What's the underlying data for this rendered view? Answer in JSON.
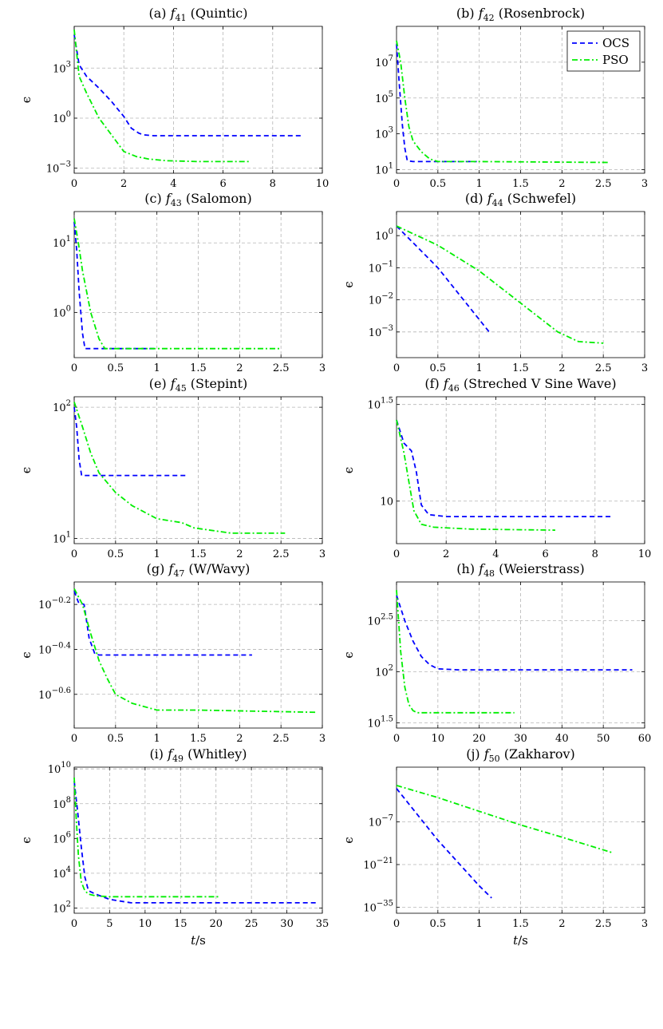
{
  "legend": {
    "entries": [
      "OCS",
      "PSO"
    ]
  },
  "series_styles": [
    {
      "name": "OCS",
      "color": "#0000ff",
      "dash": "6 4"
    },
    {
      "name": "PSO",
      "color": "#00ee00",
      "dash": "7 3 2 3"
    }
  ],
  "chart_data": [
    {
      "type": "line",
      "title": "(a) f41 (Quintic)",
      "title_prefix": "(a) ",
      "func_sub": "41",
      "func_name": " (Quintic)",
      "ylabel": "ϵ",
      "xlabel": "",
      "yscale": "log",
      "legend": false,
      "xlim": [
        0,
        10
      ],
      "xticks": [
        "0",
        "2",
        "4",
        "6",
        "8",
        "10"
      ],
      "ylim_log10": [
        -3.3,
        5.5
      ],
      "yticks": [
        {
          "base": "10",
          "exp": "3",
          "v": 3
        },
        {
          "base": "10",
          "exp": "0",
          "v": 0
        },
        {
          "base": "10",
          "exp": "−3",
          "v": -3
        }
      ],
      "series": [
        {
          "name": "OCS",
          "x": [
            0,
            0.2,
            0.5,
            1,
            1.5,
            2,
            2.3,
            2.6,
            2.8,
            3.2,
            4,
            9.2
          ],
          "y_log10": [
            5,
            3.2,
            2.5,
            1.8,
            1.0,
            0.1,
            -0.6,
            -0.9,
            -1.0,
            -1.05,
            -1.05,
            -1.05
          ]
        },
        {
          "name": "PSO",
          "x": [
            0,
            0.2,
            0.5,
            1,
            1.5,
            2,
            2.5,
            3,
            3.7,
            5,
            7.1
          ],
          "y_log10": [
            5.3,
            2.5,
            1.5,
            0,
            -1.0,
            -2.0,
            -2.3,
            -2.45,
            -2.55,
            -2.6,
            -2.6
          ]
        }
      ]
    },
    {
      "type": "line",
      "title": "(b) f42 (Rosenbrock)",
      "title_prefix": "(b) ",
      "func_sub": "42",
      "func_name": " (Rosenbrock)",
      "ylabel": "",
      "xlabel": "",
      "yscale": "log",
      "legend": true,
      "xlim": [
        0,
        3
      ],
      "xticks": [
        "0",
        "0.5",
        "1",
        "1.5",
        "2",
        "2.5",
        "3"
      ],
      "ylim_log10": [
        0.8,
        9.0
      ],
      "yticks": [
        {
          "base": "10",
          "exp": "7",
          "v": 7
        },
        {
          "base": "10",
          "exp": "5",
          "v": 5
        },
        {
          "base": "10",
          "exp": "3",
          "v": 3
        },
        {
          "base": "10",
          "exp": "1",
          "v": 1
        }
      ],
      "series": [
        {
          "name": "OCS",
          "x": [
            0,
            0.03,
            0.07,
            0.1,
            0.13,
            0.2,
            0.97
          ],
          "y_log10": [
            8.0,
            6.0,
            3.5,
            2.2,
            1.5,
            1.45,
            1.45
          ]
        },
        {
          "name": "PSO",
          "x": [
            0,
            0.05,
            0.1,
            0.15,
            0.2,
            0.3,
            0.4,
            0.5,
            1,
            2.56
          ],
          "y_log10": [
            8.2,
            7.0,
            5.0,
            3.4,
            2.6,
            2.0,
            1.6,
            1.45,
            1.45,
            1.4
          ]
        }
      ]
    },
    {
      "type": "line",
      "title": "(c) f43 (Salomon)",
      "title_prefix": "(c) ",
      "func_sub": "43",
      "func_name": " (Salomon)",
      "ylabel": "",
      "xlabel": "",
      "yscale": "log",
      "legend": false,
      "xlim": [
        0,
        3
      ],
      "xticks": [
        "0",
        "0.5",
        "1",
        "1.5",
        "2",
        "2.5",
        "3"
      ],
      "ylim_log10": [
        -0.65,
        1.45
      ],
      "yticks": [
        {
          "base": "10",
          "exp": "1",
          "v": 1
        },
        {
          "base": "10",
          "exp": "0",
          "v": 0
        }
      ],
      "series": [
        {
          "name": "OCS",
          "x": [
            0,
            0.03,
            0.06,
            0.1,
            0.13,
            1.0
          ],
          "y_log10": [
            1.3,
            0.9,
            0.3,
            -0.3,
            -0.52,
            -0.52
          ]
        },
        {
          "name": "PSO",
          "x": [
            0,
            0.05,
            0.1,
            0.2,
            0.3,
            0.37,
            0.5,
            2.5
          ],
          "y_log10": [
            1.35,
            1.0,
            0.6,
            0,
            -0.38,
            -0.52,
            -0.52,
            -0.52
          ]
        }
      ]
    },
    {
      "type": "line",
      "title": "(d) f44 (Schwefel)",
      "title_prefix": "(d) ",
      "func_sub": "44",
      "func_name": " (Schwefel)",
      "ylabel": "ϵ",
      "xlabel": "",
      "yscale": "log",
      "legend": false,
      "xlim": [
        0,
        3
      ],
      "xticks": [
        "0",
        "0.5",
        "1",
        "1.5",
        "2",
        "2.5",
        "3"
      ],
      "ylim_log10": [
        -3.8,
        0.75
      ],
      "yticks": [
        {
          "base": "10",
          "exp": "0",
          "v": 0
        },
        {
          "base": "10",
          "exp": "−1",
          "v": -1
        },
        {
          "base": "10",
          "exp": "−2",
          "v": -2
        },
        {
          "base": "10",
          "exp": "−3",
          "v": -3
        }
      ],
      "series": [
        {
          "name": "OCS",
          "x": [
            0,
            0.5,
            1.12
          ],
          "y_log10": [
            0.3,
            -1.0,
            -3.0
          ]
        },
        {
          "name": "PSO",
          "x": [
            0,
            0.5,
            1,
            1.5,
            1.95,
            2.2,
            2.5
          ],
          "y_log10": [
            0.3,
            -0.3,
            -1.1,
            -2.1,
            -3.0,
            -3.3,
            -3.35
          ]
        }
      ]
    },
    {
      "type": "line",
      "title": "(e) f45 (Stepint)",
      "title_prefix": "(e) ",
      "func_sub": "45",
      "func_name": " (Stepint)",
      "ylabel": "ϵ",
      "xlabel": "",
      "yscale": "log",
      "legend": false,
      "xlim": [
        0,
        3
      ],
      "xticks": [
        "0",
        "0.5",
        "1",
        "1.5",
        "2",
        "2.5",
        "3"
      ],
      "ylim_log10": [
        0.96,
        2.08
      ],
      "yticks": [
        {
          "base": "10",
          "exp": "2",
          "v": 2
        },
        {
          "base": "10",
          "exp": "1",
          "v": 1
        }
      ],
      "series": [
        {
          "name": "OCS",
          "x": [
            0,
            0.03,
            0.06,
            0.09,
            1.35
          ],
          "y_log10": [
            2.0,
            1.85,
            1.6,
            1.48,
            1.48
          ]
        },
        {
          "name": "PSO",
          "x": [
            0,
            0.1,
            0.2,
            0.3,
            0.5,
            0.7,
            1.0,
            1.3,
            1.45,
            1.9,
            2.55
          ],
          "y_log10": [
            2.04,
            1.85,
            1.65,
            1.5,
            1.35,
            1.25,
            1.15,
            1.12,
            1.08,
            1.04,
            1.04
          ]
        }
      ]
    },
    {
      "type": "line",
      "title": "(f) f46 (Streched V Sine Wave)",
      "title_prefix": "(f) ",
      "func_sub": "46",
      "func_name": " (Streched V Sine Wave)",
      "ylabel": "ϵ",
      "xlabel": "",
      "yscale": "log",
      "legend": false,
      "xlim": [
        0,
        10
      ],
      "xticks": [
        "0",
        "2",
        "4",
        "6",
        "8",
        "10"
      ],
      "ylim_log10": [
        0.78,
        1.54
      ],
      "yticks": [
        {
          "base": "10",
          "exp": "1.5",
          "v": 1.5
        },
        {
          "base": "10",
          "exp": "",
          "v": 1
        }
      ],
      "series": [
        {
          "name": "OCS",
          "x": [
            0,
            0.3,
            0.6,
            0.8,
            1.0,
            1.3,
            2,
            8.7
          ],
          "y_log10": [
            1.42,
            1.3,
            1.26,
            1.15,
            0.98,
            0.93,
            0.92,
            0.92
          ]
        },
        {
          "name": "PSO",
          "x": [
            0,
            0.3,
            0.5,
            0.7,
            1.0,
            1.5,
            3,
            6.4
          ],
          "y_log10": [
            1.42,
            1.25,
            1.1,
            0.95,
            0.88,
            0.865,
            0.855,
            0.85
          ]
        }
      ]
    },
    {
      "type": "line",
      "title": "(g) f47 (W/Wavy)",
      "title_prefix": "(g) ",
      "func_sub": "47",
      "func_name": " (W/Wavy)",
      "ylabel": "ϵ",
      "xlabel": "",
      "yscale": "log",
      "legend": false,
      "xlim": [
        0,
        3
      ],
      "xticks": [
        "0",
        "0.5",
        "1",
        "1.5",
        "2",
        "2.5",
        "3"
      ],
      "ylim_log10": [
        -0.75,
        -0.1
      ],
      "yticks": [
        {
          "base": "10",
          "exp": "−0.2",
          "v": -0.2
        },
        {
          "base": "10",
          "exp": "−0.4",
          "v": -0.4
        },
        {
          "base": "10",
          "exp": "−0.6",
          "v": -0.6
        }
      ],
      "series": [
        {
          "name": "OCS",
          "x": [
            0,
            0.05,
            0.12,
            0.18,
            0.25,
            0.3,
            2.15
          ],
          "y_log10": [
            -0.14,
            -0.19,
            -0.2,
            -0.35,
            -0.42,
            -0.425,
            -0.425
          ]
        },
        {
          "name": "PSO",
          "x": [
            0,
            0.1,
            0.2,
            0.3,
            0.4,
            0.5,
            0.7,
            1.0,
            1.5,
            2.93
          ],
          "y_log10": [
            -0.13,
            -0.2,
            -0.33,
            -0.45,
            -0.53,
            -0.6,
            -0.64,
            -0.67,
            -0.67,
            -0.68
          ]
        }
      ]
    },
    {
      "type": "line",
      "title": "(h) f48 (Weierstrass)",
      "title_prefix": "(h) ",
      "func_sub": "48",
      "func_name": " (Weierstrass)",
      "ylabel": "ϵ",
      "xlabel": "",
      "yscale": "log",
      "legend": false,
      "xlim": [
        0,
        60
      ],
      "xticks": [
        "0",
        "10",
        "20",
        "30",
        "40",
        "50",
        "60"
      ],
      "ylim_log10": [
        1.45,
        2.88
      ],
      "yticks": [
        {
          "base": "10",
          "exp": "2.5",
          "v": 2.5
        },
        {
          "base": "10",
          "exp": "2",
          "v": 2
        },
        {
          "base": "10",
          "exp": "1.5",
          "v": 1.5
        }
      ],
      "series": [
        {
          "name": "OCS",
          "x": [
            0,
            2,
            4,
            6,
            8,
            10,
            15,
            57
          ],
          "y_log10": [
            2.75,
            2.5,
            2.3,
            2.15,
            2.07,
            2.03,
            2.02,
            2.02
          ]
        },
        {
          "name": "PSO",
          "x": [
            0,
            0.5,
            1,
            2,
            3,
            4,
            5,
            10,
            28.5
          ],
          "y_log10": [
            2.8,
            2.5,
            2.2,
            1.85,
            1.68,
            1.62,
            1.6,
            1.6,
            1.6
          ]
        }
      ]
    },
    {
      "type": "line",
      "title": "(i) f49 (Whitley)",
      "title_prefix": "(i) ",
      "func_sub": "49",
      "func_name": " (Whitley)",
      "ylabel": "ϵ",
      "xlabel": "t/s",
      "yscale": "log",
      "legend": false,
      "xlim": [
        0,
        35
      ],
      "xticks": [
        "0",
        "5",
        "10",
        "15",
        "20",
        "25",
        "30",
        "35"
      ],
      "ylim_log10": [
        1.7,
        10.1
      ],
      "yticks": [
        {
          "base": "10",
          "exp": "10",
          "v": 10
        },
        {
          "base": "10",
          "exp": "8",
          "v": 8
        },
        {
          "base": "10",
          "exp": "6",
          "v": 6
        },
        {
          "base": "10",
          "exp": "4",
          "v": 4
        },
        {
          "base": "10",
          "exp": "2",
          "v": 2
        }
      ],
      "series": [
        {
          "name": "OCS",
          "x": [
            0,
            0.5,
            1,
            1.5,
            2,
            3,
            5,
            8,
            34.5
          ],
          "y_log10": [
            9.3,
            7.5,
            5.5,
            3.8,
            3.0,
            2.8,
            2.5,
            2.3,
            2.3
          ]
        },
        {
          "name": "PSO",
          "x": [
            0,
            0.3,
            0.6,
            1,
            1.5,
            2,
            3,
            5,
            20.5
          ],
          "y_log10": [
            9.5,
            7.0,
            5.0,
            3.5,
            3.0,
            2.8,
            2.7,
            2.65,
            2.65
          ]
        }
      ]
    },
    {
      "type": "line",
      "title": "(j) f50 (Zakharov)",
      "title_prefix": "(j) ",
      "func_sub": "50",
      "func_name": " (Zakharov)",
      "ylabel": "ϵ",
      "xlabel": "t/s",
      "yscale": "log",
      "legend": false,
      "xlim": [
        0,
        3
      ],
      "xticks": [
        "0",
        "0.5",
        "1",
        "1.5",
        "2",
        "2.5",
        "3"
      ],
      "ylim_log10": [
        -37,
        11
      ],
      "yticks": [
        {
          "base": "10",
          "exp": "−7",
          "v": -7
        },
        {
          "base": "10",
          "exp": "−21",
          "v": -21
        },
        {
          "base": "10",
          "exp": "−35",
          "v": -35
        }
      ],
      "series": [
        {
          "name": "OCS",
          "x": [
            0,
            0.5,
            1,
            1.15
          ],
          "y_log10": [
            4,
            -13,
            -28,
            -32
          ]
        },
        {
          "name": "PSO",
          "x": [
            0,
            0.5,
            1,
            1.5,
            2,
            2.6
          ],
          "y_log10": [
            5,
            1,
            -3.5,
            -8,
            -12,
            -17
          ]
        }
      ]
    }
  ]
}
